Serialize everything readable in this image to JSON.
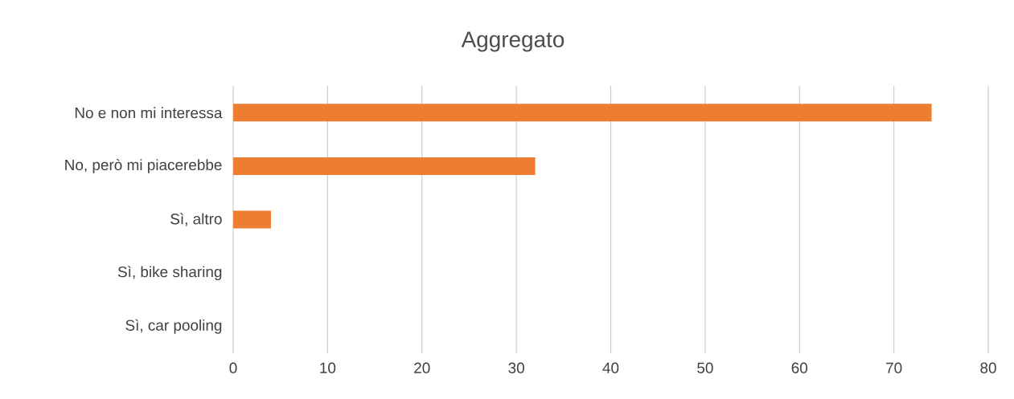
{
  "chart_data": {
    "type": "bar",
    "orientation": "horizontal",
    "title": "Aggregato",
    "categories": [
      "No e non mi interessa",
      "No, però mi piacerebbe",
      "Sì, altro",
      "Sì, bike sharing",
      "Sì, car pooling"
    ],
    "values": [
      74,
      32,
      4,
      0,
      0
    ],
    "color": "#ed7d31",
    "xlim": [
      0,
      80
    ],
    "xticks": [
      0,
      10,
      20,
      30,
      40,
      50,
      60,
      70,
      80
    ],
    "grid": "x"
  }
}
